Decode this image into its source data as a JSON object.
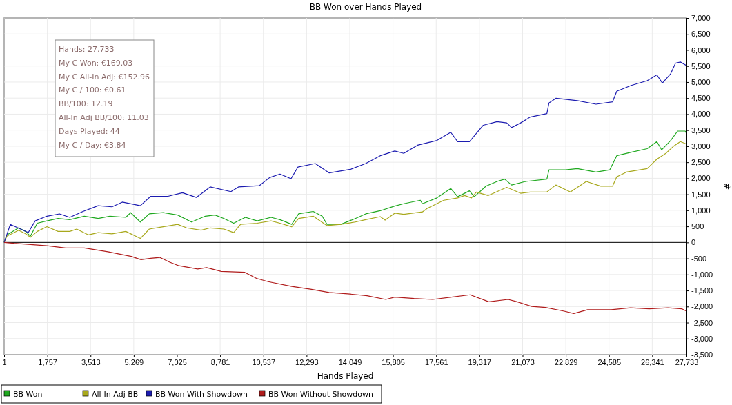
{
  "chart_data": {
    "type": "line",
    "title": "BB Won over Hands Played",
    "xlabel": "Hands Played",
    "ylabel": "#",
    "xlim": [
      1,
      27733
    ],
    "xticks": [
      1,
      {
        "value": 1757,
        "label": "1,757"
      },
      {
        "value": 3513,
        "label": "3,513"
      },
      {
        "value": 5269,
        "label": "5,269"
      },
      {
        "value": 7025,
        "label": "7,025"
      },
      {
        "value": 8781,
        "label": "8,781"
      },
      {
        "value": 10537,
        "label": "10,537"
      },
      {
        "value": 12293,
        "label": "12,293"
      },
      {
        "value": 14049,
        "label": "14,049"
      },
      {
        "value": 15805,
        "label": "15,805"
      },
      {
        "value": 17561,
        "label": "17,561"
      },
      {
        "value": 19317,
        "label": "19,317"
      },
      {
        "value": 21073,
        "label": "21,073"
      },
      {
        "value": 22829,
        "label": "22,829"
      },
      {
        "value": 24585,
        "label": "24,585"
      },
      {
        "value": 26341,
        "label": "26,341"
      },
      {
        "value": 27733,
        "label": "27,733"
      }
    ],
    "ylim": [
      -3500,
      7000
    ],
    "yticks": [
      {
        "value": -3500,
        "label": "-3,500"
      },
      {
        "value": -3000,
        "label": "-3,000"
      },
      {
        "value": -2500,
        "label": "-2,500"
      },
      {
        "value": -2000,
        "label": "-2,000"
      },
      {
        "value": -1500,
        "label": "-1,500"
      },
      {
        "value": -1000,
        "label": "-1,000"
      },
      -500,
      0,
      500,
      {
        "value": 1000,
        "label": "1,000"
      },
      {
        "value": 1500,
        "label": "1,500"
      },
      {
        "value": 2000,
        "label": "2,000"
      },
      {
        "value": 2500,
        "label": "2,500"
      },
      {
        "value": 3000,
        "label": "3,000"
      },
      {
        "value": 3500,
        "label": "3,500"
      },
      {
        "value": 4000,
        "label": "4,000"
      },
      {
        "value": 4500,
        "label": "4,500"
      },
      {
        "value": 5000,
        "label": "5,000"
      },
      {
        "value": 5500,
        "label": "5,500"
      },
      {
        "value": 6000,
        "label": "6,000"
      },
      {
        "value": 6500,
        "label": "6,500"
      },
      {
        "value": 7000,
        "label": "7,000"
      }
    ],
    "grid": true,
    "legend": "bottom left",
    "line_style": "solid",
    "marker": "none",
    "ref_lines": [
      {
        "axis": "y",
        "value": 0,
        "color": "#000000"
      }
    ],
    "annotations": [
      "Hands: 27,733",
      "My C Won: €169.03",
      "My C All-In Adj: €152.96",
      "My C / 100: €0.61",
      "BB/100: 12.19",
      "All-In Adj BB/100: 11.03",
      "Days Played: 44",
      "My C / Day: €3.84"
    ],
    "series": [
      {
        "name": "BB Won",
        "color": "#1fa81f",
        "x": [
          1,
          113,
          591,
          872,
          1068,
          1349,
          1742,
          2192,
          2670,
          3260,
          3822,
          4300,
          4946,
          5143,
          5536,
          5901,
          6463,
          7053,
          7615,
          8177,
          8570,
          8936,
          9329,
          9807,
          10285,
          10847,
          11212,
          11690,
          11970,
          12561,
          12926,
          13123,
          13685,
          14275,
          14696,
          15287,
          15877,
          16242,
          16917,
          17001,
          17591,
          18153,
          18434,
          18912,
          19108,
          19586,
          20036,
          20345,
          20627,
          21189,
          22060,
          22145,
          22819,
          23297,
          24056,
          24618,
          24899,
          25489,
          26135,
          26529,
          26725,
          27091,
          27372,
          27681,
          27733
        ],
        "values": [
          0,
          234,
          453,
          343,
          197,
          599,
          672,
          745,
          709,
          818,
          745,
          818,
          782,
          928,
          636,
          891,
          928,
          855,
          636,
          818,
          855,
          745,
          599,
          782,
          672,
          782,
          709,
          563,
          891,
          964,
          818,
          563,
          563,
          745,
          891,
          987,
          1133,
          1206,
          1315,
          1206,
          1388,
          1680,
          1425,
          1607,
          1425,
          1754,
          1900,
          1973,
          1790,
          1900,
          1973,
          2265,
          2265,
          2302,
          2192,
          2265,
          2704,
          2813,
          2923,
          3142,
          2886,
          3179,
          3471,
          3471,
          3398
        ]
      },
      {
        "name": "All-In Adj BB",
        "color": "#a8a81c",
        "x": [
          1,
          113,
          591,
          872,
          1068,
          1349,
          1742,
          2192,
          2670,
          2951,
          3429,
          3822,
          4384,
          4946,
          5536,
          5901,
          6463,
          7053,
          7418,
          8009,
          8374,
          8936,
          9329,
          9610,
          10285,
          10847,
          11212,
          11690,
          11970,
          12561,
          13123,
          13685,
          14275,
          14696,
          15287,
          15484,
          15877,
          16242,
          17001,
          17198,
          17872,
          18434,
          18715,
          18996,
          19193,
          19671,
          20430,
          20992,
          21386,
          22060,
          22426,
          23016,
          23662,
          24252,
          24730,
          24899,
          25292,
          26135,
          26529,
          26894,
          27203,
          27485,
          27733
        ],
        "values": [
          0,
          197,
          380,
          270,
          161,
          343,
          490,
          343,
          343,
          416,
          234,
          307,
          270,
          343,
          124,
          416,
          490,
          563,
          453,
          380,
          453,
          416,
          307,
          563,
          599,
          672,
          599,
          490,
          745,
          818,
          526,
          563,
          636,
          709,
          804,
          694,
          913,
          877,
          950,
          1060,
          1315,
          1388,
          1461,
          1388,
          1571,
          1461,
          1717,
          1534,
          1571,
          1571,
          1790,
          1571,
          1900,
          1754,
          1754,
          2046,
          2192,
          2302,
          2594,
          2777,
          2996,
          3142,
          3069
        ]
      },
      {
        "name": "BB Won With Showdown",
        "color": "#1c1cb0",
        "x": [
          1,
          253,
          983,
          1264,
          1742,
          2248,
          2670,
          3204,
          3822,
          4384,
          4805,
          5536,
          5957,
          6660,
          7250,
          7812,
          8374,
          9217,
          9526,
          10369,
          10790,
          11212,
          11661,
          11942,
          12645,
          13207,
          14078,
          14696,
          15287,
          15877,
          16242,
          16804,
          17591,
          18153,
          18434,
          18912,
          19193,
          19474,
          20036,
          20430,
          20627,
          20992,
          21386,
          22060,
          22145,
          22426,
          23297,
          24056,
          24730,
          24899,
          25489,
          26135,
          26529,
          26754,
          27091,
          27288,
          27485,
          27733
        ],
        "values": [
          0,
          560,
          307,
          672,
          818,
          890,
          781,
          964,
          1146,
          1110,
          1256,
          1146,
          1438,
          1438,
          1548,
          1402,
          1730,
          1584,
          1730,
          1767,
          2022,
          2132,
          1986,
          2351,
          2460,
          2168,
          2278,
          2460,
          2704,
          2850,
          2777,
          3032,
          3179,
          3434,
          3142,
          3142,
          3398,
          3654,
          3763,
          3727,
          3581,
          3727,
          3910,
          4019,
          4348,
          4494,
          4421,
          4311,
          4384,
          4713,
          4896,
          5042,
          5225,
          4969,
          5261,
          5590,
          5626,
          5517
        ]
      },
      {
        "name": "BB Won Without Showdown",
        "color": "#b01c1c",
        "x": [
          1,
          394,
          983,
          1742,
          2501,
          3260,
          4216,
          5171,
          5565,
          5958,
          6323,
          6716,
          7110,
          7868,
          8234,
          8824,
          9780,
          10258,
          10735,
          11690,
          12449,
          13207,
          13966,
          14753,
          15512,
          15877,
          16664,
          17423,
          18181,
          18940,
          19699,
          20486,
          20851,
          21442,
          22004,
          22762,
          23156,
          23718,
          24674,
          25460,
          26219,
          26978,
          27541,
          27733
        ],
        "values": [
          0,
          -29,
          -58,
          -102,
          -175,
          -175,
          -292,
          -437,
          -539,
          -496,
          -467,
          -612,
          -729,
          -831,
          -787,
          -904,
          -933,
          -1123,
          -1225,
          -1371,
          -1458,
          -1560,
          -1604,
          -1662,
          -1779,
          -1706,
          -1750,
          -1779,
          -1706,
          -1633,
          -1852,
          -1779,
          -1852,
          -1998,
          -2027,
          -2144,
          -2217,
          -2100,
          -2100,
          -2041,
          -2071,
          -2041,
          -2071,
          -2144
        ]
      }
    ]
  }
}
